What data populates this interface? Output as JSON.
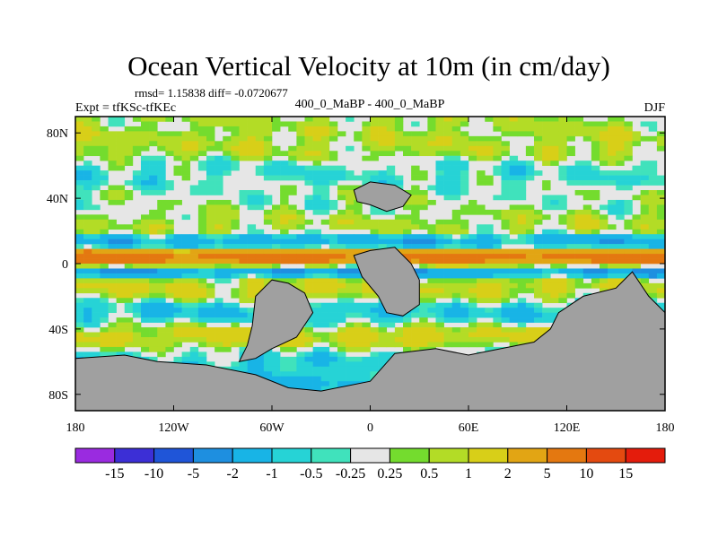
{
  "chart_data": {
    "type": "heatmap",
    "title": "Ocean Vertical Velocity at 10m (in cm/day)",
    "stats_text": "rmsd= 1.15838 diff= -0.0720677",
    "experiment_label": "Expt = tfKSc-tfKEc",
    "comparison_label": "400_0_MaBP - 400_0_MaBP",
    "season": "DJF",
    "x_axis": {
      "range": [
        -180,
        180
      ],
      "tick_values": [
        -180,
        -120,
        -60,
        0,
        60,
        120,
        180
      ],
      "tick_labels": [
        "180",
        "120W",
        "60W",
        "0",
        "60E",
        "120E",
        "180"
      ]
    },
    "y_axis": {
      "range": [
        -90,
        90
      ],
      "tick_values": [
        80,
        40,
        0,
        -40,
        -80
      ],
      "tick_labels": [
        "80N",
        "40N",
        "0",
        "40S",
        "80S"
      ]
    },
    "colorbar": {
      "tick_labels": [
        "-15",
        "-10",
        "-5",
        "-2",
        "-1",
        "-0.5",
        "-0.25",
        "0.25",
        "0.5",
        "1",
        "2",
        "5",
        "10",
        "15"
      ],
      "colors": [
        "#9a2be0",
        "#3c2fd6",
        "#1f55d8",
        "#1e8fe0",
        "#18b4e6",
        "#26d3d6",
        "#40e2bc",
        "#e6e6e6",
        "#74dc2e",
        "#b3dc26",
        "#d8cf18",
        "#e2a514",
        "#e47810",
        "#e44a10",
        "#e41c0c"
      ]
    },
    "land_color": "#a0a0a0",
    "land_regions": [
      {
        "name": "Antarctica",
        "polygon": [
          [
            -180,
            -58
          ],
          [
            -150,
            -56
          ],
          [
            -130,
            -60
          ],
          [
            -100,
            -62
          ],
          [
            -70,
            -68
          ],
          [
            -50,
            -76
          ],
          [
            -30,
            -78
          ],
          [
            0,
            -72
          ],
          [
            15,
            -55
          ],
          [
            40,
            -52
          ],
          [
            60,
            -56
          ],
          [
            80,
            -52
          ],
          [
            100,
            -48
          ],
          [
            110,
            -40
          ],
          [
            115,
            -30
          ],
          [
            130,
            -20
          ],
          [
            150,
            -15
          ],
          [
            160,
            -5
          ],
          [
            170,
            -20
          ],
          [
            180,
            -30
          ],
          [
            180,
            -90
          ],
          [
            -180,
            -90
          ]
        ]
      },
      {
        "name": "South America",
        "polygon": [
          [
            -80,
            -60
          ],
          [
            -75,
            -50
          ],
          [
            -72,
            -38
          ],
          [
            -70,
            -20
          ],
          [
            -60,
            -10
          ],
          [
            -50,
            -12
          ],
          [
            -40,
            -18
          ],
          [
            -35,
            -30
          ],
          [
            -45,
            -45
          ],
          [
            -60,
            -52
          ],
          [
            -70,
            -58
          ]
        ]
      },
      {
        "name": "Africa",
        "polygon": [
          [
            -10,
            5
          ],
          [
            0,
            8
          ],
          [
            15,
            10
          ],
          [
            25,
            0
          ],
          [
            30,
            -10
          ],
          [
            30,
            -25
          ],
          [
            20,
            -32
          ],
          [
            10,
            -30
          ],
          [
            5,
            -20
          ],
          [
            -5,
            -8
          ]
        ]
      },
      {
        "name": "Northern landmass",
        "polygon": [
          [
            -10,
            45
          ],
          [
            0,
            50
          ],
          [
            15,
            48
          ],
          [
            25,
            42
          ],
          [
            20,
            35
          ],
          [
            10,
            32
          ],
          [
            0,
            36
          ],
          [
            -8,
            38
          ]
        ]
      }
    ],
    "field_bands": [
      {
        "lat_center": 87,
        "half_width": 3,
        "value": 0.4,
        "note": "weak positive near pole"
      },
      {
        "lat_center": 72,
        "half_width": 5,
        "value": 0.6,
        "note": "patchy upwelling"
      },
      {
        "lat_center": 55,
        "half_width": 5,
        "value": -0.4,
        "note": "cyan streaks"
      },
      {
        "lat_center": 40,
        "half_width": 6,
        "value": 0.0,
        "note": "near zero (light gray)"
      },
      {
        "lat_center": 25,
        "half_width": 4,
        "value": 0.5,
        "note": "green patches"
      },
      {
        "lat_center": 12,
        "half_width": 3,
        "value": -1.5,
        "note": "downwelling blue"
      },
      {
        "lat_center": 3,
        "half_width": 3,
        "value": 8,
        "note": "equatorial upwelling (orange/red)"
      },
      {
        "lat_center": -3,
        "half_width": 3,
        "value": -3,
        "note": "equatorial blue"
      },
      {
        "lat_center": -15,
        "half_width": 5,
        "value": 1.0,
        "note": "mixed green/yellow"
      },
      {
        "lat_center": -32,
        "half_width": 6,
        "value": -1.0,
        "note": "cyan"
      },
      {
        "lat_center": -45,
        "half_width": 5,
        "value": 2.0,
        "note": "yellow/orange"
      },
      {
        "lat_center": -55,
        "half_width": 5,
        "value": -0.8,
        "note": "cyan/blue"
      }
    ]
  }
}
